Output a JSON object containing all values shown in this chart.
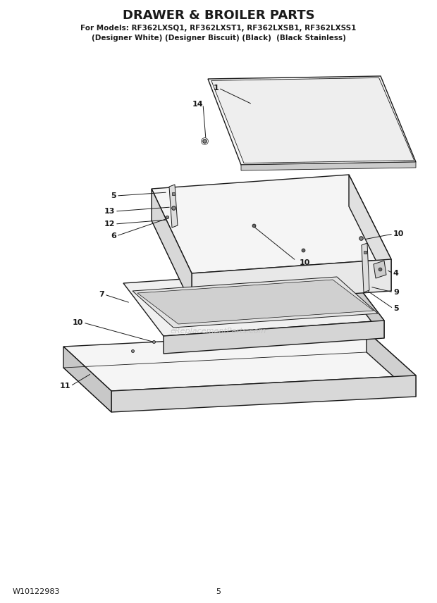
{
  "title": "DRAWER & BROILER PARTS",
  "subtitle1": "For Models: RF362LXSQ1, RF362LXST1, RF362LXSB1, RF362LXSS1",
  "subtitle2": "(Designer White) (Designer Biscuit) (Black)  (Black Stainless)",
  "footer_left": "W10122983",
  "footer_center": "5",
  "bg_color": "#ffffff",
  "line_color": "#1a1a1a",
  "watermark": "eReplacementParts.com"
}
